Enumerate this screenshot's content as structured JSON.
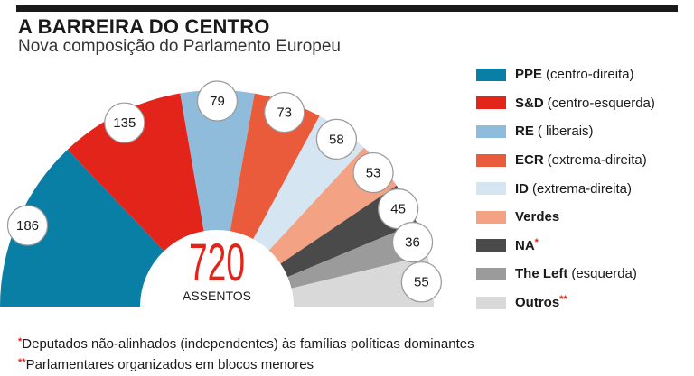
{
  "header": {
    "title": "A BARREIRA DO CENTRO",
    "subtitle": "Nova composição do Parlamento Europeu"
  },
  "chart_data": {
    "type": "pie",
    "title": "A BARREIRA DO CENTRO",
    "subtitle": "Nova composição do Parlamento Europeu",
    "total_value": "720",
    "total_label": "ASSENTOS",
    "slices": [
      {
        "abbr": "PPE",
        "desc": "(centro-direita)",
        "mark": "",
        "value": 186,
        "color": "#0a7fa6"
      },
      {
        "abbr": "S&D",
        "desc": "(centro-esquerda)",
        "mark": "",
        "value": 135,
        "color": "#e3241b"
      },
      {
        "abbr": "RE",
        "desc": "( liberais)",
        "mark": "",
        "value": 79,
        "color": "#8fbcdb"
      },
      {
        "abbr": "ECR",
        "desc": "(extrema-direita)",
        "mark": "",
        "value": 73,
        "color": "#ea5b3c"
      },
      {
        "abbr": "ID",
        "desc": "(extrema-direita)",
        "mark": "",
        "value": 58,
        "color": "#d5e6f2"
      },
      {
        "abbr": "Verdes",
        "desc": "",
        "mark": "",
        "value": 53,
        "color": "#f3a283"
      },
      {
        "abbr": "NA",
        "desc": "",
        "mark": "*",
        "value": 45,
        "color": "#4a4a4a"
      },
      {
        "abbr": "The Left",
        "desc": "(esquerda)",
        "mark": "",
        "value": 36,
        "color": "#9b9b9b"
      },
      {
        "abbr": "Outros",
        "desc": "",
        "mark": "**",
        "value": 55,
        "color": "#d9d9d9"
      }
    ]
  },
  "footnotes": [
    {
      "mark": "*",
      "text": "Deputados não-alinhados (independentes) às famílias políticas dominantes"
    },
    {
      "mark": "**",
      "text": "Parlamentares organizados em blocos menores"
    }
  ]
}
